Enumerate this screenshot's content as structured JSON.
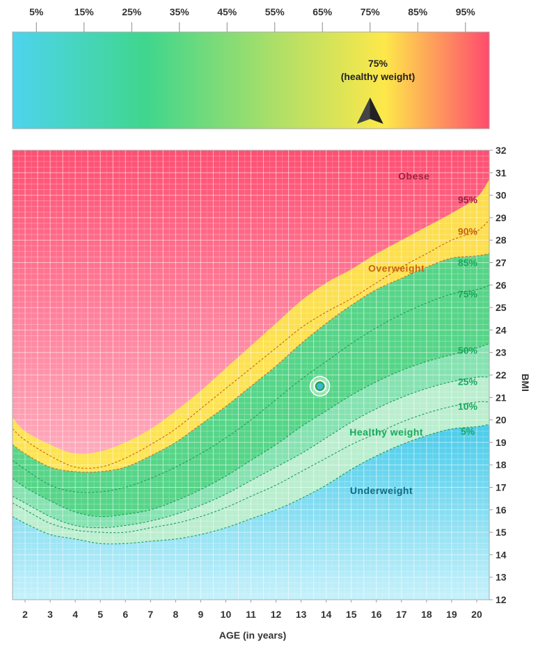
{
  "gauge": {
    "ticks": [
      "5%",
      "15%",
      "25%",
      "35%",
      "45%",
      "55%",
      "65%",
      "75%",
      "85%",
      "95%"
    ],
    "tick_values": [
      5,
      15,
      25,
      35,
      45,
      55,
      65,
      75,
      85,
      95
    ],
    "range": [
      0,
      100
    ],
    "marker_value": 75,
    "marker_label_line1": "75%",
    "marker_label_line2": "(healthy weight)",
    "colors": [
      "#4dd4ee",
      "#3fd68d",
      "#b8e064",
      "#fde84a",
      "#ff4b6e"
    ]
  },
  "chart_data": {
    "type": "line",
    "xlabel": "AGE (in years)",
    "ylabel": "BMI",
    "xlim": [
      1.5,
      20.5
    ],
    "ylim": [
      12,
      32
    ],
    "x_ticks": [
      2,
      3,
      4,
      5,
      6,
      7,
      8,
      9,
      10,
      11,
      12,
      13,
      14,
      15,
      16,
      17,
      18,
      19,
      20
    ],
    "y_ticks": [
      12,
      13,
      14,
      15,
      16,
      17,
      18,
      19,
      20,
      21,
      22,
      23,
      24,
      25,
      26,
      27,
      28,
      29,
      30,
      31,
      32
    ],
    "grid": true,
    "x": [
      1.5,
      2,
      3,
      4,
      5,
      6,
      7,
      8,
      9,
      10,
      11,
      12,
      13,
      14,
      15,
      16,
      17,
      18,
      19,
      20,
      20.5
    ],
    "series": [
      {
        "name": "5%",
        "values": [
          15.7,
          15.4,
          14.9,
          14.7,
          14.5,
          14.5,
          14.6,
          14.7,
          14.9,
          15.2,
          15.6,
          16.0,
          16.5,
          17.1,
          17.8,
          18.4,
          18.9,
          19.3,
          19.6,
          19.7,
          19.8
        ]
      },
      {
        "name": "10%",
        "values": [
          16.3,
          16.0,
          15.4,
          15.1,
          15.0,
          15.0,
          15.2,
          15.4,
          15.7,
          16.1,
          16.6,
          17.1,
          17.7,
          18.3,
          18.9,
          19.4,
          19.9,
          20.3,
          20.6,
          20.8,
          20.8
        ]
      },
      {
        "name": "25%",
        "values": [
          16.6,
          16.3,
          15.7,
          15.3,
          15.2,
          15.3,
          15.5,
          15.8,
          16.2,
          16.7,
          17.3,
          17.9,
          18.5,
          19.2,
          19.9,
          20.5,
          21.0,
          21.4,
          21.7,
          21.9,
          21.9
        ]
      },
      {
        "name": "50%",
        "values": [
          17.4,
          17.0,
          16.4,
          15.9,
          15.7,
          15.8,
          16.0,
          16.4,
          16.9,
          17.5,
          18.2,
          18.9,
          19.7,
          20.4,
          21.1,
          21.7,
          22.2,
          22.6,
          22.9,
          23.2,
          23.4
        ]
      },
      {
        "name": "75%",
        "values": [
          18.2,
          17.8,
          17.1,
          16.8,
          16.8,
          17.0,
          17.4,
          17.9,
          18.5,
          19.2,
          20.0,
          20.9,
          21.8,
          22.6,
          23.4,
          24.1,
          24.7,
          25.2,
          25.6,
          25.8,
          26.0
        ]
      },
      {
        "name": "85%",
        "values": [
          18.9,
          18.5,
          17.9,
          17.7,
          17.7,
          17.9,
          18.4,
          19.0,
          19.8,
          20.6,
          21.5,
          22.4,
          23.4,
          24.3,
          25.1,
          25.8,
          26.3,
          26.8,
          27.2,
          27.3,
          27.4
        ]
      },
      {
        "name": "90%",
        "values": [
          19.6,
          19.1,
          18.4,
          17.9,
          17.9,
          18.3,
          18.9,
          19.6,
          20.5,
          21.4,
          22.3,
          23.2,
          24.1,
          24.8,
          25.4,
          26.1,
          26.8,
          27.4,
          28.0,
          28.4,
          28.9
        ]
      },
      {
        "name": "95%",
        "values": [
          20.1,
          19.5,
          18.9,
          18.5,
          18.6,
          19.0,
          19.6,
          20.4,
          21.3,
          22.3,
          23.3,
          24.3,
          25.3,
          26.1,
          26.7,
          27.4,
          28.0,
          28.6,
          29.2,
          29.9,
          30.7
        ]
      }
    ],
    "zones": [
      {
        "name": "Obese",
        "label_x": 17.5,
        "label_y": 30.7,
        "color": "#a0203f"
      },
      {
        "name": "Overweight",
        "label_x": 16.8,
        "label_y": 26.6,
        "color": "#c76310"
      },
      {
        "name": "Healthy weight",
        "label_x": 16.4,
        "label_y": 19.3,
        "color": "#19a85d"
      },
      {
        "name": "Underweight",
        "label_x": 16.2,
        "label_y": 16.7,
        "color": "#14697f"
      }
    ],
    "percentile_labels": [
      {
        "text": "95%",
        "x": 19.5,
        "y": 29.8,
        "color": "#a0203f"
      },
      {
        "text": "90%",
        "x": 19.5,
        "y": 28.4,
        "color": "#c76310"
      },
      {
        "text": "85%",
        "x": 19.5,
        "y": 27.0,
        "color": "#19a85d"
      },
      {
        "text": "75%",
        "x": 19.5,
        "y": 25.6,
        "color": "#19a85d"
      },
      {
        "text": "50%",
        "x": 19.5,
        "y": 23.1,
        "color": "#19a85d"
      },
      {
        "text": "25%",
        "x": 19.5,
        "y": 21.7,
        "color": "#19a85d"
      },
      {
        "text": "10%",
        "x": 19.5,
        "y": 20.6,
        "color": "#19a85d"
      },
      {
        "text": "5%",
        "x": 19.5,
        "y": 19.5,
        "color": "#19a85d"
      }
    ],
    "point": {
      "x": 13.75,
      "y": 21.5
    }
  }
}
